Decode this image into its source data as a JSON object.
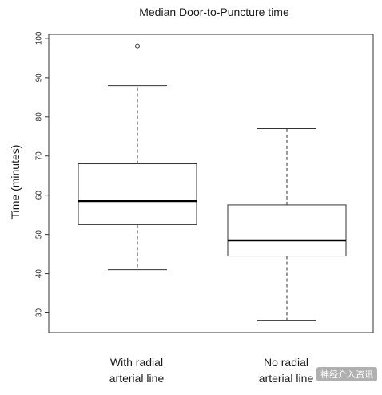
{
  "chart_data": {
    "type": "boxplot",
    "title": "Median Door-to-Puncture time",
    "ylabel": "Time (minutes)",
    "xlabel": "",
    "ylim": [
      25,
      101
    ],
    "yticks": [
      30,
      40,
      50,
      60,
      70,
      80,
      90,
      100
    ],
    "categories": [
      {
        "line1": "With radial",
        "line2": "arterial line"
      },
      {
        "line1": "No radial",
        "line2": "arterial line"
      }
    ],
    "boxes": [
      {
        "whisker_low": 41,
        "q1": 52.5,
        "median": 58.5,
        "q3": 68,
        "whisker_high": 88,
        "outliers": [
          98
        ]
      },
      {
        "whisker_low": 28,
        "q1": 44.5,
        "median": 48.5,
        "q3": 57.5,
        "whisker_high": 77,
        "outliers": []
      }
    ],
    "grid": false
  },
  "watermark": "神经介入资讯"
}
